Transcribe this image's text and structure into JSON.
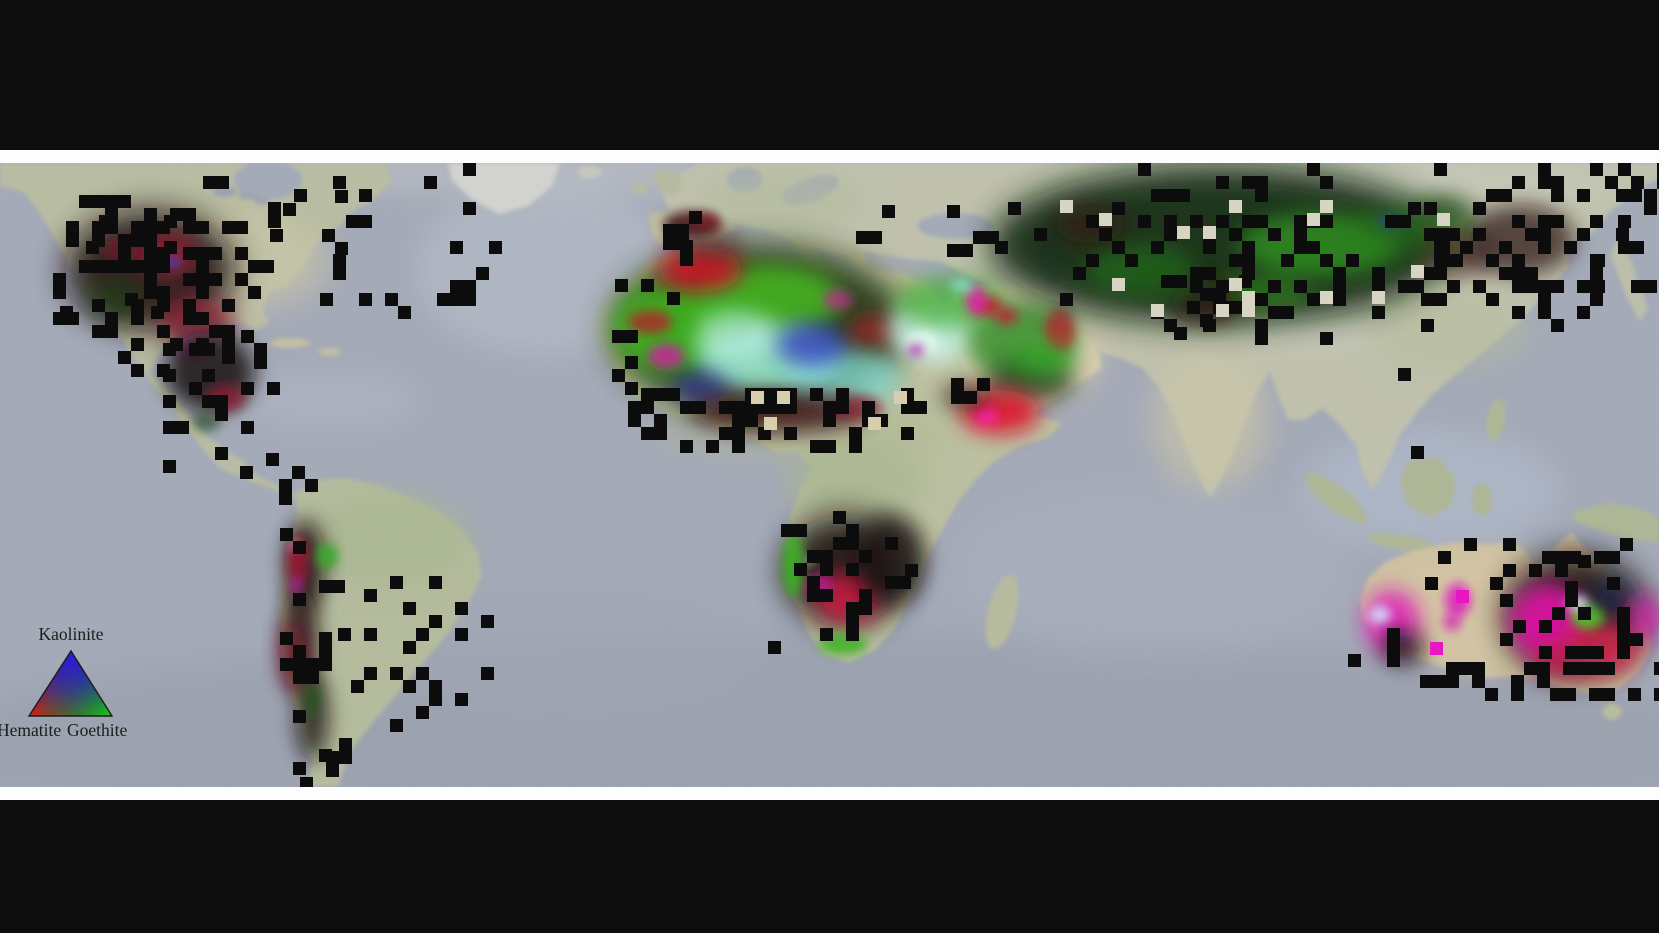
{
  "legend": {
    "top_label": "Kaolinite",
    "bottom_left_label": "Hematite",
    "bottom_right_label": "Goethite",
    "kaolinite_color": "#2a1ae8",
    "hematite_color": "#e81212",
    "goethite_color": "#16c816",
    "text_color": "#1c1c1c"
  },
  "palette": {
    "letterbox": "#0d0d0d",
    "frame": "#fdfdfd",
    "ocean": "#a4aab8",
    "land": "#bcbda4",
    "mask_black": "#070707"
  },
  "map": {
    "description": "World map of surface mineral composition; red=hematite, green=goethite, blue=kaolinite; black cells = masked data",
    "overlay": {
      "blobs": [
        [
          760,
          330,
          150,
          85,
          "#16300d",
          0.9,
          16
        ],
        [
          672,
          328,
          60,
          45,
          "#3dbb1e",
          0.85,
          10
        ],
        [
          770,
          300,
          72,
          35,
          "#46c21e",
          0.8,
          10
        ],
        [
          720,
          300,
          30,
          18,
          "#2fae20",
          0.7,
          10
        ],
        [
          768,
          360,
          70,
          35,
          "#9df0d8",
          0.85,
          10
        ],
        [
          735,
          335,
          40,
          25,
          "#bff5e8",
          0.6,
          10
        ],
        [
          845,
          378,
          58,
          30,
          "#8ae8e0",
          0.7,
          10
        ],
        [
          812,
          345,
          35,
          22,
          "#2a35c0",
          0.75,
          10
        ],
        [
          700,
          388,
          30,
          18,
          "#2a2fa8",
          0.6,
          10
        ],
        [
          700,
          270,
          42,
          22,
          "#d01022",
          0.85,
          10
        ],
        [
          650,
          322,
          22,
          12,
          "#c01125",
          0.7,
          5
        ],
        [
          666,
          356,
          18,
          12,
          "#d018a0",
          0.8,
          5
        ],
        [
          838,
          300,
          15,
          10,
          "#c02890",
          0.7,
          5
        ],
        [
          872,
          330,
          25,
          15,
          "#b01228",
          0.7,
          10
        ],
        [
          780,
          412,
          90,
          20,
          "#401016",
          0.8,
          10
        ],
        [
          858,
          408,
          25,
          12,
          "#901028",
          0.6,
          5
        ],
        [
          692,
          224,
          28,
          13,
          "#401012",
          0.85,
          5
        ],
        [
          708,
          221,
          11,
          7,
          "#981a28",
          0.7,
          5
        ],
        [
          706,
          243,
          36,
          10,
          "#3a1010",
          0.6,
          10
        ],
        [
          933,
          330,
          45,
          32,
          "#c8f5ea",
          0.85,
          10
        ],
        [
          950,
          302,
          55,
          26,
          "#35a825",
          0.7,
          10
        ],
        [
          922,
          342,
          16,
          11,
          "#e6fff4",
          0.8,
          5
        ],
        [
          916,
          350,
          8,
          6,
          "#b018a8",
          0.8,
          5
        ],
        [
          1022,
          342,
          55,
          40,
          "#2c8a20",
          0.8,
          10
        ],
        [
          1030,
          382,
          45,
          22,
          "#112808",
          0.65,
          10
        ],
        [
          988,
          306,
          14,
          9,
          "#d01030",
          0.8,
          5
        ],
        [
          1006,
          316,
          12,
          8,
          "#c81030",
          0.75,
          5
        ],
        [
          976,
          300,
          10,
          15,
          "#e818b0",
          0.8,
          5
        ],
        [
          1060,
          330,
          15,
          22,
          "#c41228",
          0.7,
          5
        ],
        [
          1042,
          360,
          30,
          16,
          "#2fae20",
          0.7,
          10
        ],
        [
          962,
          286,
          12,
          6,
          "#90e8d8",
          0.8,
          5
        ],
        [
          1000,
          412,
          40,
          22,
          "#dd0a28",
          0.9,
          10
        ],
        [
          986,
          416,
          12,
          9,
          "#ff22aa",
          0.9,
          5
        ],
        [
          966,
          396,
          24,
          12,
          "#200808",
          0.7,
          10
        ],
        [
          1220,
          245,
          230,
          80,
          "#0d260a",
          0.92,
          16
        ],
        [
          1320,
          245,
          80,
          32,
          "#2f9e1c",
          0.7,
          10
        ],
        [
          1140,
          270,
          55,
          25,
          "#1e6a14",
          0.7,
          10
        ],
        [
          1262,
          292,
          50,
          18,
          "#2a8a18",
          0.6,
          10
        ],
        [
          1420,
          228,
          60,
          25,
          "#236f14",
          0.6,
          10
        ],
        [
          1090,
          225,
          35,
          18,
          "#380d10",
          0.6,
          10
        ],
        [
          1460,
          255,
          35,
          20,
          "#380d10",
          0.6,
          10
        ],
        [
          1390,
          222,
          14,
          7,
          "#2040b0",
          0.5,
          5
        ],
        [
          1520,
          240,
          55,
          35,
          "#260a0c",
          0.7,
          10
        ],
        [
          1445,
          210,
          28,
          15,
          "#143a0c",
          0.6,
          10
        ],
        [
          1205,
          302,
          33,
          20,
          "#2a0a0a",
          0.8,
          10
        ],
        [
          1180,
          287,
          28,
          12,
          "#1c5612",
          0.7,
          10
        ],
        [
          150,
          270,
          85,
          60,
          "#1c0710",
          0.88,
          16
        ],
        [
          165,
          255,
          32,
          20,
          "#a81236",
          0.8,
          10
        ],
        [
          196,
          320,
          38,
          24,
          "#8c102c",
          0.7,
          10
        ],
        [
          172,
          262,
          9,
          6,
          "#3a4ad0",
          0.7,
          5
        ],
        [
          115,
          300,
          28,
          20,
          "#123a10",
          0.65,
          10
        ],
        [
          188,
          350,
          15,
          10,
          "#a01878",
          0.6,
          5
        ],
        [
          120,
          250,
          18,
          12,
          "#7a0e24",
          0.6,
          5
        ],
        [
          210,
          372,
          45,
          40,
          "#180810",
          0.85,
          10
        ],
        [
          226,
          398,
          20,
          14,
          "#90122e",
          0.7,
          5
        ],
        [
          206,
          422,
          14,
          10,
          "#1c4a12",
          0.6,
          5
        ],
        [
          305,
          565,
          20,
          45,
          "#1a0a08",
          0.85,
          10
        ],
        [
          300,
          640,
          18,
          55,
          "#1a0a08",
          0.85,
          10
        ],
        [
          312,
          716,
          16,
          45,
          "#140808",
          0.8,
          10
        ],
        [
          298,
          560,
          11,
          25,
          "#a01030",
          0.8,
          5
        ],
        [
          327,
          556,
          11,
          12,
          "#2fae20",
          0.85,
          5
        ],
        [
          296,
          586,
          7,
          9,
          "#b020a0",
          0.75,
          5
        ],
        [
          293,
          656,
          12,
          35,
          "#8d0f2a",
          0.7,
          10
        ],
        [
          312,
          700,
          9,
          18,
          "#1d5a14",
          0.6,
          5
        ],
        [
          295,
          545,
          4,
          4,
          "#e8e8ff",
          0.8,
          5
        ],
        [
          845,
          570,
          62,
          55,
          "#120707",
          0.9,
          16
        ],
        [
          848,
          598,
          33,
          26,
          "#d01240",
          0.85,
          10
        ],
        [
          818,
          585,
          14,
          11,
          "#c018a0",
          0.8,
          5
        ],
        [
          793,
          565,
          11,
          32,
          "#38b41c",
          0.85,
          5
        ],
        [
          843,
          644,
          24,
          11,
          "#38b41c",
          0.85,
          5
        ],
        [
          810,
          560,
          5,
          4,
          "#eeeeff",
          0.8,
          5
        ],
        [
          890,
          560,
          35,
          45,
          "#160a0a",
          0.8,
          10
        ],
        [
          1392,
          622,
          28,
          32,
          "#e012b8",
          0.85,
          10
        ],
        [
          1380,
          615,
          11,
          9,
          "#cfe0ff",
          0.9,
          5
        ],
        [
          1396,
          638,
          9,
          7,
          "#3040c0",
          0.6,
          5
        ],
        [
          1403,
          648,
          22,
          17,
          "#16080f",
          0.8,
          10
        ],
        [
          1458,
          600,
          13,
          17,
          "#e010c0",
          0.8,
          5
        ],
        [
          1452,
          622,
          9,
          9,
          "#d810b8",
          0.7,
          5
        ],
        [
          1575,
          615,
          72,
          62,
          "#14070d",
          0.9,
          16
        ],
        [
          1548,
          622,
          38,
          38,
          "#ee10b0",
          0.85,
          10
        ],
        [
          1602,
          648,
          38,
          28,
          "#e02050",
          0.8,
          10
        ],
        [
          1588,
          616,
          17,
          13,
          "#55cc20",
          0.9,
          5
        ],
        [
          1578,
          603,
          11,
          8,
          "#e8f0ff",
          0.85,
          5
        ],
        [
          1612,
          598,
          22,
          16,
          "#14205a",
          0.65,
          10
        ],
        [
          1645,
          618,
          16,
          24,
          "#d815a8",
          0.8,
          10
        ],
        [
          1560,
          660,
          30,
          18,
          "#c81848",
          0.7,
          10
        ]
      ],
      "masks": [
        [
          "canada",
          60,
          163,
          430,
          150,
          0.08,
          11,
          1,
          null
        ],
        [
          "quebec",
          270,
          190,
          110,
          75,
          0.18,
          12,
          0,
          null
        ],
        [
          "us-west",
          40,
          195,
          228,
          180,
          0.5,
          13,
          0,
          null
        ],
        [
          "mexico",
          150,
          330,
          130,
          140,
          0.3,
          14,
          0,
          null
        ],
        [
          "cent-america",
          240,
          440,
          70,
          55,
          0.15,
          15,
          1,
          null
        ],
        [
          "andes",
          280,
          515,
          62,
          265,
          0.42,
          16,
          0,
          null
        ],
        [
          "argentina",
          325,
          550,
          160,
          185,
          0.2,
          17,
          0,
          null
        ],
        [
          "sa-tip",
          300,
          738,
          60,
          48,
          0.25,
          18,
          1,
          null
        ],
        [
          "spain",
          650,
          198,
          90,
          55,
          0.28,
          19,
          0,
          null
        ],
        [
          "morocco",
          615,
          240,
          70,
          55,
          0.2,
          20,
          1,
          null
        ],
        [
          "turkey",
          830,
          192,
          185,
          72,
          0.2,
          21,
          0,
          null
        ],
        [
          "sahara-s",
          628,
          388,
          300,
          55,
          0.32,
          22,
          1,
          null
        ],
        [
          "wafrica",
          612,
          330,
          40,
          70,
          0.2,
          23,
          1,
          null
        ],
        [
          "ethiopia",
          912,
          378,
          100,
          48,
          0.3,
          24,
          0,
          null
        ],
        [
          "central-asia",
          995,
          163,
          465,
          175,
          0.26,
          25,
          0,
          null
        ],
        [
          "ne-asia",
          1395,
          163,
          264,
          175,
          0.4,
          26,
          0,
          null
        ],
        [
          "nw-india",
          1148,
          275,
          125,
          65,
          0.35,
          27,
          0,
          null
        ],
        [
          "se-asia",
          1320,
          355,
          140,
          110,
          0.05,
          28,
          1,
          null
        ],
        [
          "s-africa",
          768,
          498,
          150,
          170,
          0.3,
          29,
          0,
          null
        ],
        [
          "botswana",
          892,
          525,
          80,
          70,
          0.28,
          30,
          0,
          null
        ],
        [
          "aus-top",
          1425,
          538,
          234,
          50,
          0.3,
          31,
          1,
          null
        ],
        [
          "aus-interior",
          1500,
          555,
          159,
          135,
          0.25,
          32,
          0,
          null
        ],
        [
          "aus-sw",
          1348,
          628,
          115,
          60,
          0.3,
          33,
          0,
          null
        ],
        [
          "aus-south",
          1420,
          662,
          239,
          35,
          0.38,
          34,
          1,
          null
        ],
        [
          "gap-central-asia",
          1060,
          200,
          380,
          115,
          0.05,
          35,
          1,
          "#d9d5c4"
        ],
        [
          "gap-sahara",
          660,
          378,
          250,
          45,
          0.05,
          36,
          1,
          "#d9cfae"
        ],
        [
          "wa-pink-cells",
          1430,
          590,
          60,
          60,
          0.15,
          37,
          1,
          "#e812c4"
        ],
        [
          "east-edge",
          1592,
          163,
          67,
          120,
          0.35,
          38,
          1,
          null
        ]
      ]
    }
  }
}
